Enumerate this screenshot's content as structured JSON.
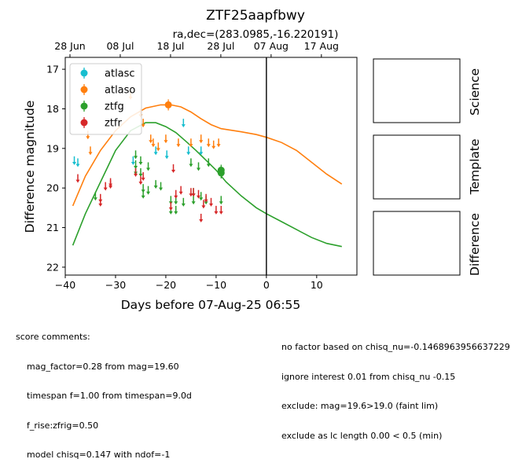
{
  "chart_data": {
    "type": "scatter",
    "title": "ZTF25aapfbwy",
    "subtitle": "ra,dec=(283.0985,-16.220191)",
    "xlabel": "Days before 07-Aug-25 06:55",
    "ylabel": "Difference magnitude",
    "xlim": [
      -40,
      18
    ],
    "ylim": [
      22.2,
      16.7
    ],
    "y_inverted": true,
    "x_ticks": [
      -40,
      -30,
      -20,
      -10,
      0,
      10
    ],
    "x_tick_labels": [
      "−40",
      "−30",
      "−20",
      "−10",
      "0",
      "10"
    ],
    "y_ticks": [
      17,
      18,
      19,
      20,
      21,
      22
    ],
    "y_tick_labels": [
      "17",
      "18",
      "19",
      "20",
      "21",
      "22"
    ],
    "top_axis_ticks": [
      -40,
      -30,
      -20,
      -10,
      0,
      10
    ],
    "top_axis_labels": [
      "28 Jun",
      "08 Jul",
      "18 Jul",
      "28 Jul",
      "07 Aug",
      "17 Aug"
    ],
    "vline_x": 0,
    "legend_position": "upper left",
    "series": [
      {
        "name": "atlasc",
        "color": "#17becf",
        "marker": "upper-limit",
        "points": [
          [
            -38.2,
            19.3
          ],
          [
            -37.5,
            19.35
          ],
          [
            -26.5,
            19.3
          ],
          [
            -22,
            19.05
          ],
          [
            -19.8,
            19.15
          ],
          [
            -16.5,
            18.35
          ],
          [
            -15.5,
            19.05
          ],
          [
            -13,
            19.05
          ]
        ]
      },
      {
        "name": "atlaso",
        "color": "#ff7f0e",
        "marker": "upper-limit",
        "points": [
          [
            -35.5,
            18.65
          ],
          [
            -35,
            19.05
          ],
          [
            -27,
            17.65
          ],
          [
            -25,
            18.1
          ],
          [
            -24.5,
            18.35
          ],
          [
            -23,
            18.75
          ],
          [
            -22.5,
            18.85
          ],
          [
            -21.5,
            18.95
          ],
          [
            -20,
            18.75
          ],
          [
            -17.5,
            18.85
          ],
          [
            -15,
            18.85
          ],
          [
            -13,
            18.75
          ],
          [
            -11.5,
            18.85
          ],
          [
            -10.5,
            18.9
          ],
          [
            -9.5,
            18.85
          ]
        ]
      },
      {
        "name": "atlaso-detection",
        "color": "#ff7f0e",
        "marker": "point",
        "points": [
          [
            -19.5,
            17.9
          ]
        ]
      },
      {
        "name": "ztfg",
        "color": "#2ca02c",
        "marker": "upper-limit",
        "points": [
          [
            -34,
            20.2
          ],
          [
            -26,
            19.15
          ],
          [
            -26,
            19.4
          ],
          [
            -26,
            19.55
          ],
          [
            -25,
            19.3
          ],
          [
            -25,
            19.6
          ],
          [
            -24.5,
            20
          ],
          [
            -24.5,
            20.15
          ],
          [
            -23.5,
            19.45
          ],
          [
            -23.5,
            20.05
          ],
          [
            -22,
            19.9
          ],
          [
            -21,
            19.95
          ],
          [
            -19,
            20.3
          ],
          [
            -19,
            20.55
          ],
          [
            -18,
            20.3
          ],
          [
            -18,
            20.55
          ],
          [
            -16.5,
            20.35
          ],
          [
            -15,
            19.35
          ],
          [
            -14.5,
            20.3
          ],
          [
            -14.5,
            20.1
          ],
          [
            -13.5,
            19.45
          ],
          [
            -13,
            20.2
          ],
          [
            -12,
            20.3
          ],
          [
            -11.5,
            19.35
          ],
          [
            -9,
            20.3
          ]
        ]
      },
      {
        "name": "ztfg-detection",
        "color": "#2ca02c",
        "marker": "point",
        "points": [
          [
            -9,
            19.55
          ],
          [
            -9,
            19.62
          ]
        ]
      },
      {
        "name": "ztfr",
        "color": "#d62728",
        "marker": "upper-limit",
        "points": [
          [
            -37.5,
            19.75
          ],
          [
            -33,
            20.25
          ],
          [
            -33,
            20.35
          ],
          [
            -32,
            19.95
          ],
          [
            -31,
            19.9
          ],
          [
            -31,
            19.85
          ],
          [
            -26,
            19.6
          ],
          [
            -25,
            19.8
          ],
          [
            -24.5,
            19.7
          ],
          [
            -19,
            20.45
          ],
          [
            -18.5,
            19.5
          ],
          [
            -18,
            20.15
          ],
          [
            -17,
            20.05
          ],
          [
            -15,
            20.1
          ],
          [
            -14.5,
            20.1
          ],
          [
            -13.5,
            20.15
          ],
          [
            -13,
            20.75
          ],
          [
            -12.5,
            20.4
          ],
          [
            -12,
            20.25
          ],
          [
            -11,
            20.35
          ],
          [
            -10,
            20.55
          ],
          [
            -9,
            20.55
          ]
        ]
      }
    ],
    "model_curves": [
      {
        "color": "#ff7f0e",
        "points": [
          [
            -38.5,
            20.45
          ],
          [
            -36,
            19.7
          ],
          [
            -33,
            19.05
          ],
          [
            -30,
            18.55
          ],
          [
            -27,
            18.2
          ],
          [
            -24,
            17.98
          ],
          [
            -21,
            17.9
          ],
          [
            -19,
            17.9
          ],
          [
            -17,
            17.95
          ],
          [
            -15,
            18.08
          ],
          [
            -13,
            18.25
          ],
          [
            -11,
            18.4
          ],
          [
            -9,
            18.5
          ],
          [
            -5,
            18.58
          ],
          [
            -2,
            18.65
          ],
          [
            0,
            18.72
          ],
          [
            3,
            18.85
          ],
          [
            6,
            19.05
          ],
          [
            9,
            19.35
          ],
          [
            12,
            19.65
          ],
          [
            15,
            19.9
          ]
        ]
      },
      {
        "color": "#2ca02c",
        "points": [
          [
            -38.5,
            21.45
          ],
          [
            -36,
            20.65
          ],
          [
            -33,
            19.85
          ],
          [
            -30,
            19.05
          ],
          [
            -27,
            18.55
          ],
          [
            -24,
            18.35
          ],
          [
            -22,
            18.35
          ],
          [
            -20,
            18.45
          ],
          [
            -18,
            18.6
          ],
          [
            -16,
            18.82
          ],
          [
            -14,
            19.05
          ],
          [
            -12,
            19.3
          ],
          [
            -10,
            19.55
          ],
          [
            -8,
            19.85
          ],
          [
            -5,
            20.2
          ],
          [
            -2,
            20.5
          ],
          [
            0,
            20.65
          ],
          [
            3,
            20.85
          ],
          [
            6,
            21.05
          ],
          [
            9,
            21.25
          ],
          [
            12,
            21.4
          ],
          [
            15,
            21.48
          ]
        ]
      }
    ]
  },
  "panels": [
    {
      "label": "Science"
    },
    {
      "label": "Template"
    },
    {
      "label": "Difference"
    }
  ],
  "comments": {
    "header": "score comments:",
    "left": [
      "mag_factor=0.28 from mag=19.60",
      "timespan f=1.00 from timespan=9.0d",
      "f_rise:zfrig=0.50",
      "model chisq=0.147 with ndof=-1"
    ],
    "right": [
      "no factor based on chisq_nu=-0.1468963956637229",
      "ignore interest 0.01 from chisq_nu -0.15",
      "exclude: mag=19.6>19.0 (faint lim)",
      "exclude as lc length 0.00 < 0.5 (min)"
    ]
  }
}
